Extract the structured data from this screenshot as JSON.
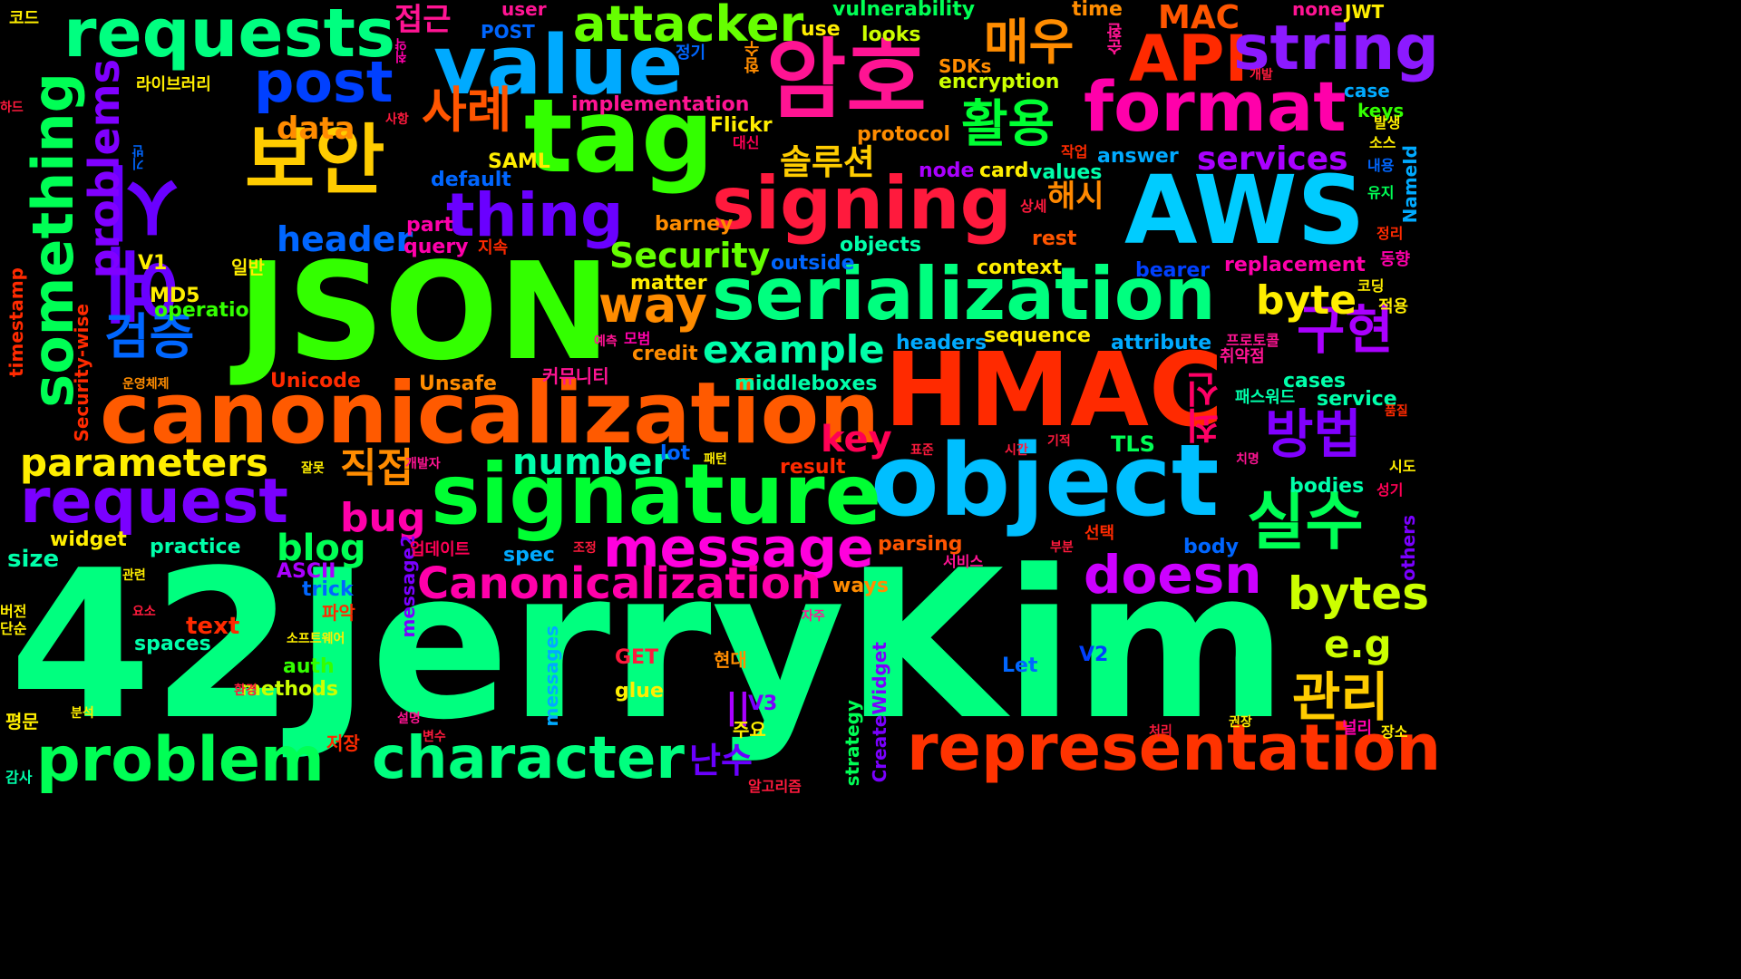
{
  "words": [
    {
      "text": "42JerryKim",
      "color": "#00ff7f"
    },
    {
      "text": "JSON",
      "color": "#33ff00"
    },
    {
      "text": "HMAC",
      "color": "#ff2a00"
    },
    {
      "text": "canonicalization",
      "color": "#ff5a00"
    },
    {
      "text": "object",
      "color": "#00bfff"
    },
    {
      "text": "signature",
      "color": "#00ff33"
    },
    {
      "text": "serialization",
      "color": "#00ff7f"
    },
    {
      "text": "tag",
      "color": "#33ff00"
    },
    {
      "text": "value",
      "color": "#00aaff"
    },
    {
      "text": "AWS",
      "color": "#00ccff"
    },
    {
      "text": "signing",
      "color": "#ff1a3d"
    },
    {
      "text": "암호",
      "color": "#ff1493"
    },
    {
      "text": "보안",
      "color": "#ffcc00"
    },
    {
      "text": "예시",
      "color": "#6a00ff"
    },
    {
      "text": "requests",
      "color": "#00ff80"
    },
    {
      "text": "format",
      "color": "#ff00aa"
    },
    {
      "text": "API",
      "color": "#ff2a00"
    },
    {
      "text": "string",
      "color": "#8c1aff"
    },
    {
      "text": "attacker",
      "color": "#66ff00"
    },
    {
      "text": "post",
      "color": "#0040ff"
    },
    {
      "text": "thing",
      "color": "#6a00ff"
    },
    {
      "text": "representation",
      "color": "#ff3300"
    },
    {
      "text": "character",
      "color": "#00ff7f"
    },
    {
      "text": "problem",
      "color": "#00ff55"
    },
    {
      "text": "request",
      "color": "#7a00ff"
    },
    {
      "text": "message",
      "color": "#ff00dd"
    },
    {
      "text": "Canonicalization",
      "color": "#ff00aa"
    },
    {
      "text": "doesn",
      "color": "#cc00ff"
    },
    {
      "text": "bytes",
      "color": "#ccff00"
    },
    {
      "text": "실수",
      "color": "#00ff55"
    },
    {
      "text": "구현",
      "color": "#aa00ff"
    },
    {
      "text": "방법",
      "color": "#8000ff"
    },
    {
      "text": "관리",
      "color": "#ffcc00"
    },
    {
      "text": "something",
      "color": "#00ff55"
    },
    {
      "text": "problems",
      "color": "#8000ff"
    },
    {
      "text": "parameters",
      "color": "#ffee00"
    },
    {
      "text": "way",
      "color": "#ff8c00"
    },
    {
      "text": "example",
      "color": "#00ffaa"
    },
    {
      "text": "byte",
      "color": "#ffee00"
    },
    {
      "text": "e.g",
      "color": "#ccff00"
    },
    {
      "text": "매우",
      "color": "#ff8c00"
    },
    {
      "text": "활용",
      "color": "#00ff33"
    },
    {
      "text": "사례",
      "color": "#ff5500"
    },
    {
      "text": "검증",
      "color": "#0066ff"
    },
    {
      "text": "최신",
      "color": "#ff0066"
    },
    {
      "text": "number",
      "color": "#00ffaa"
    },
    {
      "text": "blog",
      "color": "#00ff55"
    },
    {
      "text": "bug",
      "color": "#ff00aa"
    },
    {
      "text": "key",
      "color": "#ff0055"
    },
    {
      "text": "직접",
      "color": "#ff8c00"
    },
    {
      "text": "header",
      "color": "#0066ff"
    },
    {
      "text": "Security",
      "color": "#66ff00"
    },
    {
      "text": "services",
      "color": "#aa00ff"
    },
    {
      "text": "MAC",
      "color": "#ff5500"
    },
    {
      "text": "data",
      "color": "#ff8c00"
    },
    {
      "text": "솔루션",
      "color": "#ffcc00"
    },
    {
      "text": "해시",
      "color": "#ff8800"
    },
    {
      "text": "난수",
      "color": "#6a00ff"
    },
    {
      "text": "접근",
      "color": "#ff1493"
    },
    {
      "text": "TLS",
      "color": "#00ff55"
    },
    {
      "text": "text",
      "color": "#ff2a00"
    },
    {
      "text": "vulnerability",
      "color": "#00ff55"
    },
    {
      "text": "implementation",
      "color": "#ff1493"
    },
    {
      "text": "encryption",
      "color": "#ccff00"
    },
    {
      "text": "replacement",
      "color": "#ff00aa"
    },
    {
      "text": "middleboxes",
      "color": "#00ffaa"
    },
    {
      "text": "sequence",
      "color": "#ffee00"
    },
    {
      "text": "attribute",
      "color": "#00aaff"
    },
    {
      "text": "headers",
      "color": "#00aaff"
    },
    {
      "text": "operation",
      "color": "#33ff00"
    },
    {
      "text": "context",
      "color": "#ffee00"
    },
    {
      "text": "objects",
      "color": "#00ffaa"
    },
    {
      "text": "outside",
      "color": "#0066ff"
    },
    {
      "text": "matter",
      "color": "#ffee00"
    },
    {
      "text": "credit",
      "color": "#ff8c00"
    },
    {
      "text": "protocol",
      "color": "#ff8c00"
    },
    {
      "text": "answer",
      "color": "#00aaff"
    },
    {
      "text": "values",
      "color": "#00ffaa"
    },
    {
      "text": "card",
      "color": "#ffee00"
    },
    {
      "text": "node",
      "color": "#aa00ff"
    },
    {
      "text": "default",
      "color": "#0066ff"
    },
    {
      "text": "SAML",
      "color": "#ffee00"
    },
    {
      "text": "Flickr",
      "color": "#ffee00"
    },
    {
      "text": "query",
      "color": "#ff00aa"
    },
    {
      "text": "part",
      "color": "#ff00aa"
    },
    {
      "text": "barney",
      "color": "#ff8c00"
    },
    {
      "text": "rest",
      "color": "#ff5500"
    },
    {
      "text": "bearer",
      "color": "#0040ff"
    },
    {
      "text": "cases",
      "color": "#00ffaa"
    },
    {
      "text": "service",
      "color": "#00ffaa"
    },
    {
      "text": "bodies",
      "color": "#00ffaa"
    },
    {
      "text": "body",
      "color": "#0066ff"
    },
    {
      "text": "parsing",
      "color": "#ff5500"
    },
    {
      "text": "spec",
      "color": "#00aaff"
    },
    {
      "text": "lot",
      "color": "#0066ff"
    },
    {
      "text": "result",
      "color": "#ff2a00"
    },
    {
      "text": "practice",
      "color": "#00ffaa"
    },
    {
      "text": "widget",
      "color": "#ffee00"
    },
    {
      "text": "size",
      "color": "#00ffaa"
    },
    {
      "text": "ASCII",
      "color": "#aa00ff"
    },
    {
      "text": "trick",
      "color": "#0066ff"
    },
    {
      "text": "auth",
      "color": "#33ff00"
    },
    {
      "text": "methods",
      "color": "#ccff00"
    },
    {
      "text": "spaces",
      "color": "#00ffaa"
    },
    {
      "text": "glue",
      "color": "#ffee00"
    },
    {
      "text": "GET",
      "color": "#ff1a3d"
    },
    {
      "text": "Let",
      "color": "#0066ff"
    },
    {
      "text": "V2",
      "color": "#0040ff"
    },
    {
      "text": "V3",
      "color": "#7a00ff"
    },
    {
      "text": "||",
      "color": "#aa00ff"
    },
    {
      "text": "ways",
      "color": "#ff8c00"
    },
    {
      "text": "Unsafe",
      "color": "#ff8c00"
    },
    {
      "text": "Unicode",
      "color": "#ff2a00"
    },
    {
      "text": "MD5",
      "color": "#ffee00"
    },
    {
      "text": "V1",
      "color": "#ffee00"
    },
    {
      "text": "POST",
      "color": "#0066ff"
    },
    {
      "text": "user",
      "color": "#ff1493"
    },
    {
      "text": "use",
      "color": "#ffee00"
    },
    {
      "text": "looks",
      "color": "#ccff00"
    },
    {
      "text": "time",
      "color": "#ff8c00"
    },
    {
      "text": "none",
      "color": "#ff1493"
    },
    {
      "text": "JWT",
      "color": "#ffee00"
    },
    {
      "text": "SDKs",
      "color": "#ff8c00"
    },
    {
      "text": "case",
      "color": "#00aaff"
    },
    {
      "text": "keys",
      "color": "#33ff00"
    },
    {
      "text": "timestamp",
      "color": "#ff2a00"
    },
    {
      "text": "Security-wise",
      "color": "#ff2a00"
    },
    {
      "text": "message2",
      "color": "#7a00ff"
    },
    {
      "text": "messages",
      "color": "#00aaff"
    },
    {
      "text": "strategy",
      "color": "#00ff55"
    },
    {
      "text": "CreateWidget",
      "color": "#7a00ff"
    },
    {
      "text": "others",
      "color": "#7a00ff"
    },
    {
      "text": "NameId",
      "color": "#00aaff"
    },
    {
      "text": "코드",
      "color": "#ffee00"
    },
    {
      "text": "하드",
      "color": "#ff1a3d"
    },
    {
      "text": "라이브러리",
      "color": "#ffee00"
    },
    {
      "text": "일반",
      "color": "#ffee00"
    },
    {
      "text": "지속",
      "color": "#ff2a00"
    },
    {
      "text": "정기",
      "color": "#0066ff"
    },
    {
      "text": "개발",
      "color": "#ff1a3d"
    },
    {
      "text": "사항",
      "color": "#ff1a3d"
    },
    {
      "text": "대신",
      "color": "#ff0055"
    },
    {
      "text": "작업",
      "color": "#ff2a00"
    },
    {
      "text": "발생",
      "color": "#ffee00"
    },
    {
      "text": "소스",
      "color": "#ffee00"
    },
    {
      "text": "내용",
      "color": "#0066ff"
    },
    {
      "text": "유지",
      "color": "#00ff55"
    },
    {
      "text": "정리",
      "color": "#ff2a00"
    },
    {
      "text": "동향",
      "color": "#ff00aa"
    },
    {
      "text": "코딩",
      "color": "#ffee00"
    },
    {
      "text": "적용",
      "color": "#ffee00"
    },
    {
      "text": "상세",
      "color": "#ff1a3d"
    },
    {
      "text": "예측",
      "color": "#ff1493"
    },
    {
      "text": "모범",
      "color": "#ff00aa"
    },
    {
      "text": "운영체제",
      "color": "#ff8c00"
    },
    {
      "text": "커뮤니티",
      "color": "#ff1493"
    },
    {
      "text": "프로토콜",
      "color": "#ff1493"
    },
    {
      "text": "취약점",
      "color": "#ff1493"
    },
    {
      "text": "패스워드",
      "color": "#00ffaa"
    },
    {
      "text": "품질",
      "color": "#ff2a00"
    },
    {
      "text": "표준",
      "color": "#ff1a3d"
    },
    {
      "text": "시간",
      "color": "#ff1a3d"
    },
    {
      "text": "기적",
      "color": "#ff1a3d"
    },
    {
      "text": "패턴",
      "color": "#ffee00"
    },
    {
      "text": "치명",
      "color": "#ff1493"
    },
    {
      "text": "시도",
      "color": "#ffee00"
    },
    {
      "text": "성기",
      "color": "#ff0055"
    },
    {
      "text": "개발자",
      "color": "#ff1493"
    },
    {
      "text": "잘못",
      "color": "#ffee00"
    },
    {
      "text": "선택",
      "color": "#ff2a00"
    },
    {
      "text": "부분",
      "color": "#ff1a3d"
    },
    {
      "text": "업데이트",
      "color": "#ff0055"
    },
    {
      "text": "조정",
      "color": "#ff1a3d"
    },
    {
      "text": "서비스",
      "color": "#ff1493"
    },
    {
      "text": "관련",
      "color": "#ffee00"
    },
    {
      "text": "요소",
      "color": "#ff1a3d"
    },
    {
      "text": "파악",
      "color": "#ff2a00"
    },
    {
      "text": "버전",
      "color": "#ffee00"
    },
    {
      "text": "단순",
      "color": "#ffee00"
    },
    {
      "text": "소프트웨어",
      "color": "#ffee00"
    },
    {
      "text": "환경",
      "color": "#ff1a3d"
    },
    {
      "text": "현대",
      "color": "#ff8c00"
    },
    {
      "text": "자주",
      "color": "#ff1493"
    },
    {
      "text": "평문",
      "color": "#ffee00"
    },
    {
      "text": "분석",
      "color": "#ffee00"
    },
    {
      "text": "설명",
      "color": "#ff1493"
    },
    {
      "text": "변수",
      "color": "#ff1a3d"
    },
    {
      "text": "저장",
      "color": "#ff2a00"
    },
    {
      "text": "주요",
      "color": "#ffee00"
    },
    {
      "text": "감사",
      "color": "#00ffaa"
    },
    {
      "text": "알고리즘",
      "color": "#ff1a3d"
    },
    {
      "text": "처리",
      "color": "#ff1a3d"
    },
    {
      "text": "권장",
      "color": "#ffee00"
    },
    {
      "text": "널리",
      "color": "#ff00aa"
    },
    {
      "text": "장소",
      "color": "#ffee00"
    },
    {
      "text": "기반",
      "color": "#0066ff"
    },
    {
      "text": "함수",
      "color": "#ff8c00"
    },
    {
      "text": "순환",
      "color": "#ff1493"
    },
    {
      "text": "취약",
      "color": "#ff00aa"
    }
  ]
}
